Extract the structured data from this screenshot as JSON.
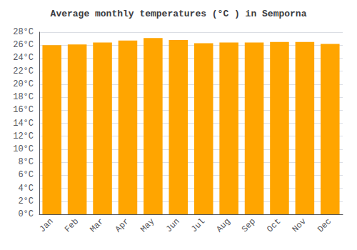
{
  "chart_data": {
    "type": "bar",
    "title": "Average monthly temperatures (°C ) in Semporna",
    "categories": [
      "Jan",
      "Feb",
      "Mar",
      "Apr",
      "May",
      "Jun",
      "Jul",
      "Aug",
      "Sep",
      "Oct",
      "Nov",
      "Dec"
    ],
    "values": [
      26.0,
      26.1,
      26.4,
      26.7,
      27.1,
      26.8,
      26.3,
      26.4,
      26.4,
      26.5,
      26.5,
      26.2
    ],
    "color": "#FFA500",
    "ylim": [
      0,
      28
    ],
    "yticks": [
      {
        "value": 0,
        "label": "0°C"
      },
      {
        "value": 2,
        "label": "2°C"
      },
      {
        "value": 4,
        "label": "4°C"
      },
      {
        "value": 6,
        "label": "6°C"
      },
      {
        "value": 8,
        "label": "8°C"
      },
      {
        "value": 10,
        "label": "10°C"
      },
      {
        "value": 12,
        "label": "12°C"
      },
      {
        "value": 14,
        "label": "14°C"
      },
      {
        "value": 16,
        "label": "16°C"
      },
      {
        "value": 18,
        "label": "18°C"
      },
      {
        "value": 20,
        "label": "20°C"
      },
      {
        "value": 22,
        "label": "22°C"
      },
      {
        "value": 24,
        "label": "24°C"
      },
      {
        "value": 26,
        "label": "26°C"
      },
      {
        "value": 28,
        "label": "28°C"
      }
    ],
    "grid": true
  }
}
